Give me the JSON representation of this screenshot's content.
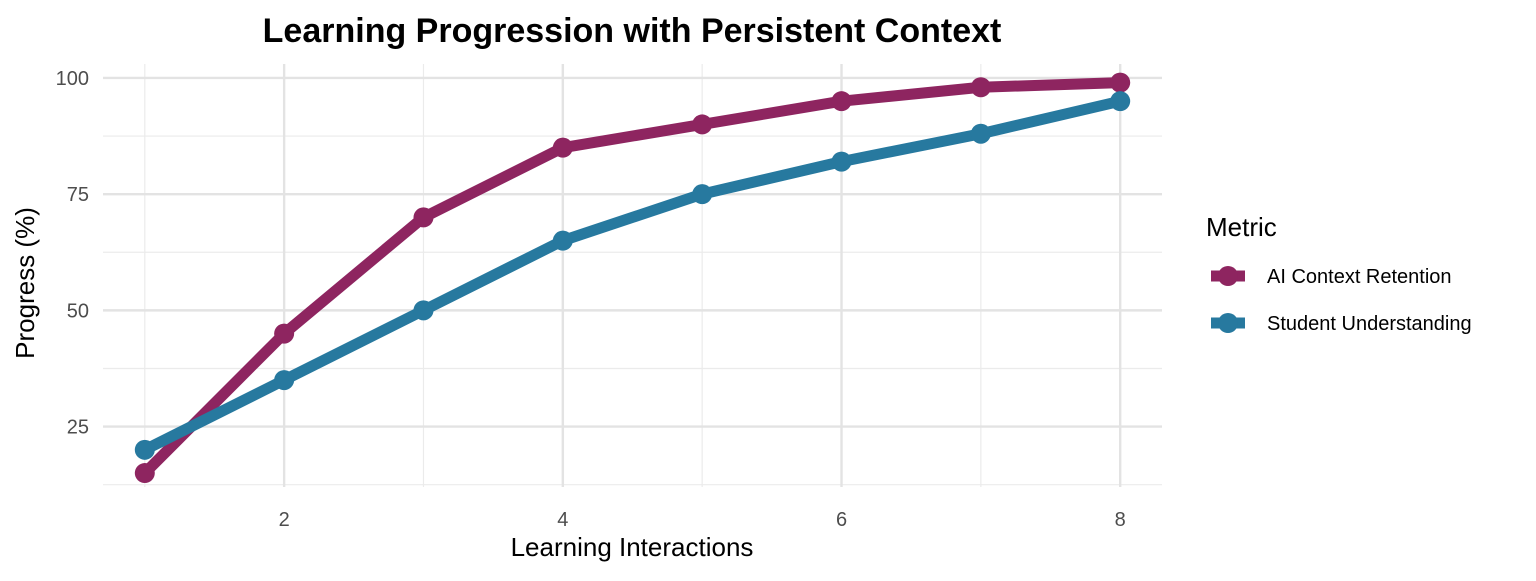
{
  "chart_data": {
    "type": "line",
    "title": "Learning Progression with Persistent Context",
    "xlabel": "Learning Interactions",
    "ylabel": "Progress (%)",
    "x": [
      1,
      2,
      3,
      4,
      5,
      6,
      7,
      8
    ],
    "xlim": [
      0.7,
      8.3
    ],
    "ylim": [
      12,
      103
    ],
    "x_ticks": [
      2,
      4,
      6,
      8
    ],
    "y_ticks": [
      25,
      50,
      75,
      100
    ],
    "grid": true,
    "legend": {
      "title": "Metric",
      "position": "right"
    },
    "series": [
      {
        "name": "AI Context Retention",
        "color": "#8e2560",
        "values": [
          15,
          45,
          70,
          85,
          90,
          95,
          98,
          99
        ]
      },
      {
        "name": "Student Understanding",
        "color": "#27799f",
        "values": [
          20,
          35,
          50,
          65,
          75,
          82,
          88,
          95
        ]
      }
    ]
  }
}
